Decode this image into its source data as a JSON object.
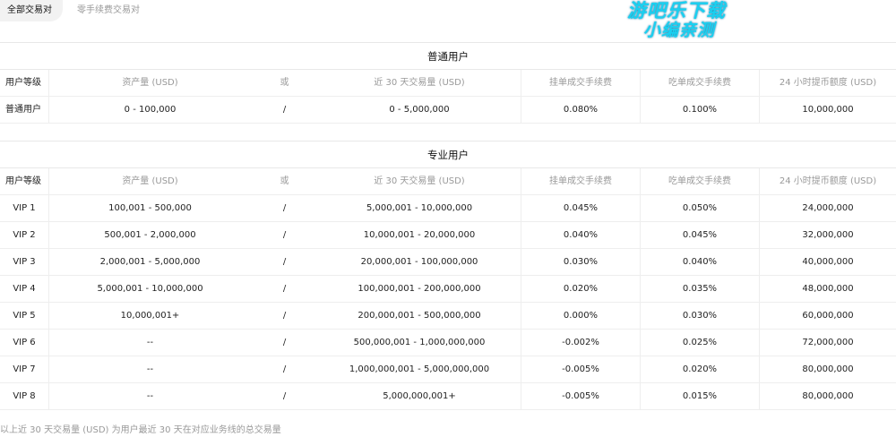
{
  "tabs": [
    {
      "label": "全部交易对",
      "active": true
    },
    {
      "label": "零手续费交易对",
      "active": false
    }
  ],
  "watermark": {
    "line1": "游吧乐下载",
    "line2": "小编亲测",
    "color": "#1ad0f0"
  },
  "columns": [
    "用户等级",
    "资产量 (USD)",
    "或",
    "近 30 天交易量 (USD)",
    "挂单成交手续费",
    "吃单成交手续费",
    "24 小时提币额度 (USD)"
  ],
  "regular": {
    "title": "普通用户",
    "rows": [
      [
        "普通用户",
        "0 - 100,000",
        "/",
        "0 - 5,000,000",
        "0.080%",
        "0.100%",
        "10,000,000"
      ]
    ]
  },
  "pro": {
    "title": "专业用户",
    "rows": [
      [
        "VIP 1",
        "100,001 - 500,000",
        "/",
        "5,000,001 - 10,000,000",
        "0.045%",
        "0.050%",
        "24,000,000"
      ],
      [
        "VIP 2",
        "500,001 - 2,000,000",
        "/",
        "10,000,001 - 20,000,000",
        "0.040%",
        "0.045%",
        "32,000,000"
      ],
      [
        "VIP 3",
        "2,000,001 - 5,000,000",
        "/",
        "20,000,001 - 100,000,000",
        "0.030%",
        "0.040%",
        "40,000,000"
      ],
      [
        "VIP 4",
        "5,000,001 - 10,000,000",
        "/",
        "100,000,001 - 200,000,000",
        "0.020%",
        "0.035%",
        "48,000,000"
      ],
      [
        "VIP 5",
        "10,000,001+",
        "/",
        "200,000,001 - 500,000,000",
        "0.000%",
        "0.030%",
        "60,000,000"
      ],
      [
        "VIP 6",
        "--",
        "/",
        "500,000,001 - 1,000,000,000",
        "-0.002%",
        "0.025%",
        "72,000,000"
      ],
      [
        "VIP 7",
        "--",
        "/",
        "1,000,000,001 - 5,000,000,000",
        "-0.005%",
        "0.020%",
        "80,000,000"
      ],
      [
        "VIP 8",
        "--",
        "/",
        "5,000,000,001+",
        "-0.005%",
        "0.015%",
        "80,000,000"
      ]
    ]
  },
  "footnote": "以上近 30 天交易量 (USD) 为用户最近 30 天在对应业务线的总交易量"
}
